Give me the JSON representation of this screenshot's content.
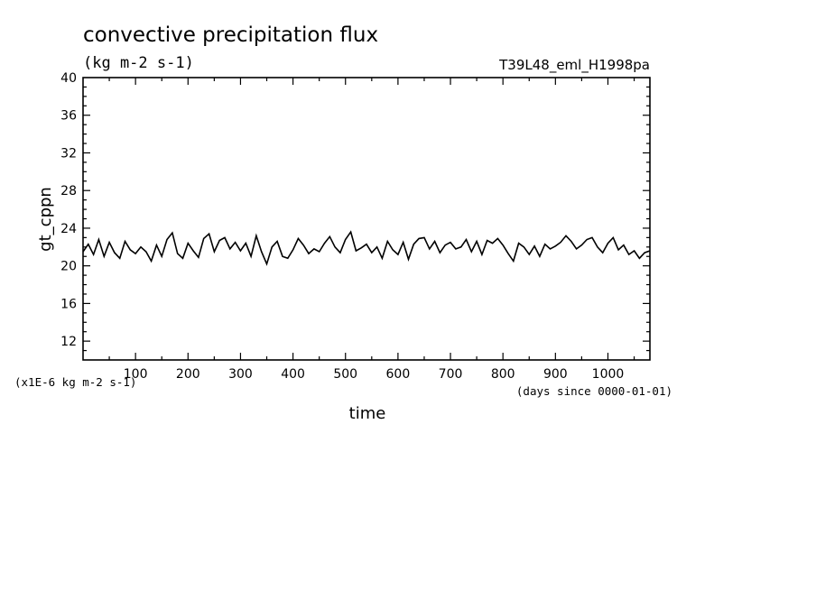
{
  "chart_data": {
    "type": "line",
    "title": "convective precipitation flux",
    "subtitle": "(kg m-2 s-1)",
    "run_label": "T39L48_eml_H1998pa",
    "xlabel": "time",
    "x_units": "(days since 0000-01-01)",
    "ylabel": "gt_cppn",
    "y_scale_note": "(x1E-6 kg m-2 s-1)",
    "xlim": [
      0,
      1080
    ],
    "ylim": [
      10,
      40
    ],
    "x_ticks": [
      100,
      200,
      300,
      400,
      500,
      600,
      700,
      800,
      900,
      1000
    ],
    "x_tick_labels": [
      "100",
      "200",
      "300",
      "400",
      "500",
      "600",
      "700",
      "800",
      "900",
      "1000"
    ],
    "y_ticks": [
      12,
      16,
      20,
      24,
      28,
      32,
      36,
      40
    ],
    "y_tick_labels": [
      "12",
      "16",
      "20",
      "24",
      "28",
      "32",
      "36",
      "40"
    ],
    "grid": false,
    "legend": "none",
    "series": [
      {
        "x": [
          0,
          10,
          20,
          30,
          40,
          50,
          60,
          70,
          80,
          90,
          100,
          110,
          120,
          130,
          140,
          150,
          160,
          170,
          180,
          190,
          200,
          210,
          220,
          230,
          240,
          250,
          260,
          270,
          280,
          290,
          300,
          310,
          320,
          330,
          340,
          350,
          360,
          370,
          380,
          390,
          400,
          410,
          420,
          430,
          440,
          450,
          460,
          470,
          480,
          490,
          500,
          510,
          520,
          530,
          540,
          550,
          560,
          570,
          580,
          590,
          600,
          610,
          620,
          630,
          640,
          650,
          660,
          670,
          680,
          690,
          700,
          710,
          720,
          730,
          740,
          750,
          760,
          770,
          780,
          790,
          800,
          810,
          820,
          830,
          840,
          850,
          860,
          870,
          880,
          890,
          900,
          910,
          920,
          930,
          940,
          950,
          960,
          970,
          980,
          990,
          1000,
          1010,
          1020,
          1030,
          1040,
          1050,
          1060,
          1070,
          1080
        ],
        "y": [
          21.5,
          22.3,
          21.2,
          22.8,
          21.0,
          22.5,
          21.4,
          20.8,
          22.6,
          21.7,
          21.3,
          22.0,
          21.5,
          20.5,
          22.2,
          21.0,
          22.8,
          23.5,
          21.3,
          20.8,
          22.4,
          21.6,
          20.9,
          22.9,
          23.4,
          21.5,
          22.7,
          23.0,
          21.8,
          22.5,
          21.6,
          22.4,
          21.0,
          23.2,
          21.5,
          20.2,
          22.0,
          22.6,
          21.0,
          20.8,
          21.7,
          22.9,
          22.2,
          21.3,
          21.8,
          21.5,
          22.4,
          23.1,
          22.0,
          21.4,
          22.8,
          23.6,
          21.6,
          21.9,
          22.3,
          21.4,
          22.0,
          20.8,
          22.6,
          21.7,
          21.2,
          22.5,
          20.7,
          22.3,
          22.9,
          23.0,
          21.8,
          22.6,
          21.4,
          22.2,
          22.5,
          21.8,
          22.0,
          22.8,
          21.5,
          22.6,
          21.2,
          22.7,
          22.4,
          22.9,
          22.2,
          21.3,
          20.5,
          22.4,
          22.0,
          21.2,
          22.1,
          21.0,
          22.3,
          21.8,
          22.1,
          22.5,
          23.2,
          22.6,
          21.8,
          22.2,
          22.8,
          23.0,
          22.0,
          21.4,
          22.4,
          23.0,
          21.7,
          22.2,
          21.2,
          21.6,
          20.8,
          21.4,
          21.6
        ],
        "color": "#000000"
      }
    ]
  }
}
